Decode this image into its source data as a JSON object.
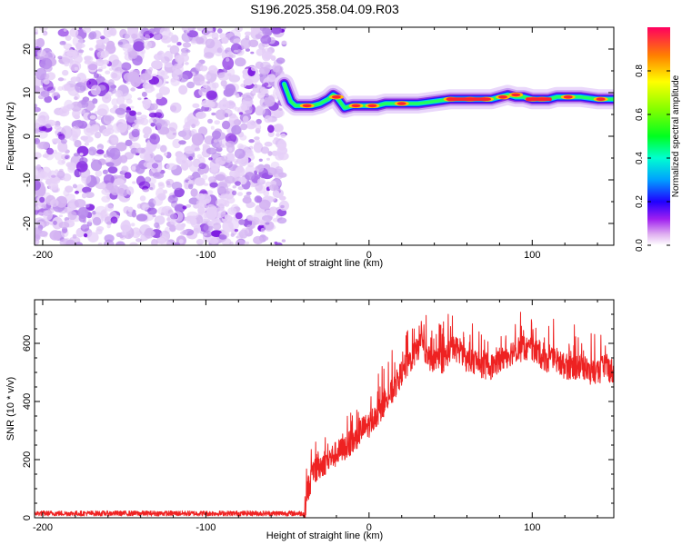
{
  "title": "S196.2025.358.04.09.R03",
  "chart_data": [
    {
      "type": "heatmap",
      "name": "spectrogram",
      "xlabel": "Height of straight line (km)",
      "ylabel": "Frequency (Hz)",
      "xlim": [
        -205,
        150
      ],
      "ylim": [
        -25,
        25
      ],
      "x_ticks": [
        -200,
        -100,
        0,
        100
      ],
      "y_ticks": [
        -20,
        -10,
        0,
        10,
        20
      ],
      "noise_region_x": [
        -205,
        -52
      ],
      "signal_ridge": {
        "x": [
          -52,
          -48,
          -45,
          -40,
          -35,
          -30,
          -25,
          -22,
          -20,
          -15,
          -10,
          -5,
          0,
          5,
          10,
          20,
          30,
          40,
          50,
          60,
          70,
          75,
          80,
          85,
          90,
          95,
          100,
          110,
          115,
          120,
          130,
          140,
          150
        ],
        "y": [
          12,
          8,
          7,
          7,
          7,
          7.5,
          8.5,
          9.5,
          9,
          6.5,
          7,
          7,
          7,
          7,
          7.5,
          7.5,
          7.5,
          8,
          8.5,
          8.5,
          8.5,
          8.5,
          9,
          9.5,
          9,
          9,
          8.5,
          8.5,
          9,
          9,
          9,
          8.5,
          8.5
        ]
      },
      "colorbar": {
        "label": "Normalized spectral amplitude",
        "range": [
          0,
          1
        ],
        "ticks": [
          0.0,
          0.2,
          0.4,
          0.6,
          0.8
        ],
        "tick_labels": [
          "0.0",
          "0.2",
          "0.4",
          "0.6",
          "0.8"
        ],
        "colormap": [
          "#ffffff",
          "#b088f0",
          "#7000e0",
          "#0000ff",
          "#00c0ff",
          "#00ff40",
          "#c0ff00",
          "#ffc000",
          "#ff0000"
        ]
      }
    },
    {
      "type": "line",
      "name": "snr",
      "xlabel": "Height of straight line (km)",
      "ylabel": "SNR (10 * v/v)",
      "xlim": [
        -205,
        150
      ],
      "ylim": [
        0,
        750
      ],
      "x_ticks": [
        -200,
        -100,
        0,
        100
      ],
      "y_ticks": [
        0,
        200,
        400,
        600
      ],
      "series": [
        {
          "color": "#ee2222",
          "x": [
            -205,
            -150,
            -100,
            -55,
            -40,
            -38,
            -35,
            -30,
            -25,
            -20,
            -15,
            -10,
            -5,
            0,
            5,
            10,
            15,
            20,
            25,
            30,
            32,
            35,
            40,
            45,
            50,
            55,
            60,
            65,
            70,
            75,
            80,
            85,
            90,
            95,
            100,
            105,
            110,
            115,
            120,
            125,
            130,
            135,
            140,
            145,
            150
          ],
          "y": [
            15,
            15,
            15,
            15,
            15,
            110,
            160,
            200,
            220,
            240,
            260,
            280,
            320,
            340,
            380,
            420,
            460,
            520,
            560,
            600,
            650,
            580,
            560,
            560,
            600,
            600,
            560,
            560,
            540,
            540,
            560,
            580,
            600,
            600,
            600,
            580,
            560,
            560,
            540,
            540,
            540,
            520,
            520,
            540,
            520
          ]
        }
      ]
    }
  ]
}
